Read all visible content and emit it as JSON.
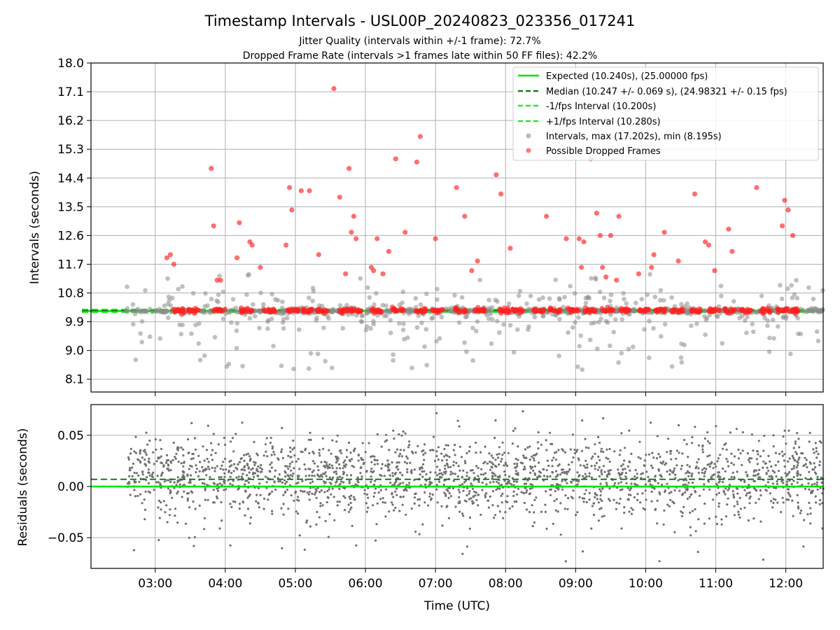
{
  "figure": {
    "title": "Timestamp Intervals - USL00P_20240823_023356_017241",
    "subtitle_1": "Jitter Quality (intervals within +/-1 frame): 72.7%",
    "subtitle_2": "Dropped Frame Rate (intervals >1 frames late within 50 FF files): 42.2%"
  },
  "colors": {
    "expected": "#00e600",
    "median": "#1a7a1a",
    "interval_band": "#22ee22",
    "intervals": "#8c8c8c",
    "dropped": "#ff2020",
    "grid": "#b0b0b0"
  },
  "chart_data": [
    {
      "type": "scatter",
      "panel": "top",
      "ylabel": "Intervals (seconds)",
      "ylim": [
        7.7,
        18.0
      ],
      "yticks": [
        "8.1",
        "9.0",
        "9.9",
        "10.8",
        "11.7",
        "12.6",
        "13.5",
        "14.4",
        "15.3",
        "16.2",
        "17.1",
        "18.0"
      ],
      "grid": true,
      "legend_position": "top-right",
      "legend": [
        "Expected (10.240s), (25.00000 fps)",
        "Median (10.247 +/- 0.069 s), (24.98321 +/- 0.15 fps)",
        "-1/fps Interval (10.200s)",
        "+1/fps Interval (10.280s)",
        "Intervals, max (17.202s), min (8.195s)",
        "Possible Dropped Frames"
      ],
      "reference_lines": {
        "expected": 10.24,
        "median": 10.247,
        "minus_one_frame": 10.2,
        "plus_one_frame": 10.28
      },
      "series": [
        {
          "name": "Possible Dropped Frames",
          "x_times": [
            "03:10",
            "03:13",
            "03:16",
            "03:48",
            "03:50",
            "03:53",
            "03:56",
            "04:10",
            "04:12",
            "04:21",
            "04:23",
            "04:30",
            "04:52",
            "04:55",
            "04:57",
            "05:05",
            "05:12",
            "05:20",
            "05:33",
            "05:38",
            "05:43",
            "05:46",
            "05:48",
            "05:50",
            "05:52",
            "06:05",
            "06:07",
            "06:10",
            "06:15",
            "06:20",
            "06:26",
            "06:34",
            "06:44",
            "06:47",
            "07:00",
            "07:18",
            "07:25",
            "07:31",
            "07:36",
            "07:52",
            "07:56",
            "08:04",
            "08:35",
            "08:52",
            "09:03",
            "09:05",
            "09:07",
            "09:13",
            "09:18",
            "09:21",
            "09:23",
            "09:26",
            "09:30",
            "09:35",
            "09:37",
            "09:54",
            "10:05",
            "10:07",
            "10:16",
            "10:28",
            "10:42",
            "10:51",
            "10:54",
            "10:59",
            "11:11",
            "11:14",
            "11:35",
            "11:57",
            "11:59",
            "12:02",
            "12:06"
          ],
          "y": [
            11.9,
            12.0,
            11.7,
            14.7,
            12.9,
            11.2,
            11.2,
            11.9,
            13.0,
            12.4,
            12.3,
            11.6,
            12.3,
            14.1,
            13.4,
            14.0,
            14.0,
            12.0,
            17.2,
            13.8,
            11.4,
            14.7,
            12.7,
            13.2,
            12.5,
            11.6,
            11.5,
            12.5,
            11.4,
            12.1,
            15.0,
            12.7,
            14.9,
            15.7,
            12.5,
            14.1,
            13.2,
            11.5,
            11.8,
            14.5,
            13.9,
            12.2,
            13.2,
            12.5,
            12.5,
            11.6,
            12.4,
            15.0,
            13.3,
            12.6,
            11.6,
            11.3,
            12.6,
            11.2,
            13.2,
            11.4,
            11.6,
            12.0,
            12.7,
            11.8,
            13.9,
            12.4,
            12.3,
            11.5,
            12.8,
            12.1,
            14.1,
            12.9,
            13.7,
            13.4,
            12.6
          ],
          "note_dense_band": "many more dropped-frame points lie on the 10.2-10.3 s band across the full time range"
        }
      ]
    },
    {
      "type": "scatter",
      "panel": "bottom",
      "xlabel": "Time (UTC)",
      "ylabel": "Residuals (seconds)",
      "ylim": [
        -0.08,
        0.08
      ],
      "yticks": [
        "−0.05",
        "0.00",
        "0.05"
      ],
      "xticks": [
        "03:00",
        "04:00",
        "05:00",
        "06:00",
        "07:00",
        "08:00",
        "09:00",
        "10:00",
        "11:00",
        "12:00"
      ],
      "x_range": [
        "02:05",
        "12:32"
      ],
      "grid": true,
      "reference_lines": {
        "expected": 0.0,
        "median": 0.007
      },
      "residual_spread": {
        "typical_min": -0.05,
        "typical_max": 0.07
      }
    }
  ]
}
